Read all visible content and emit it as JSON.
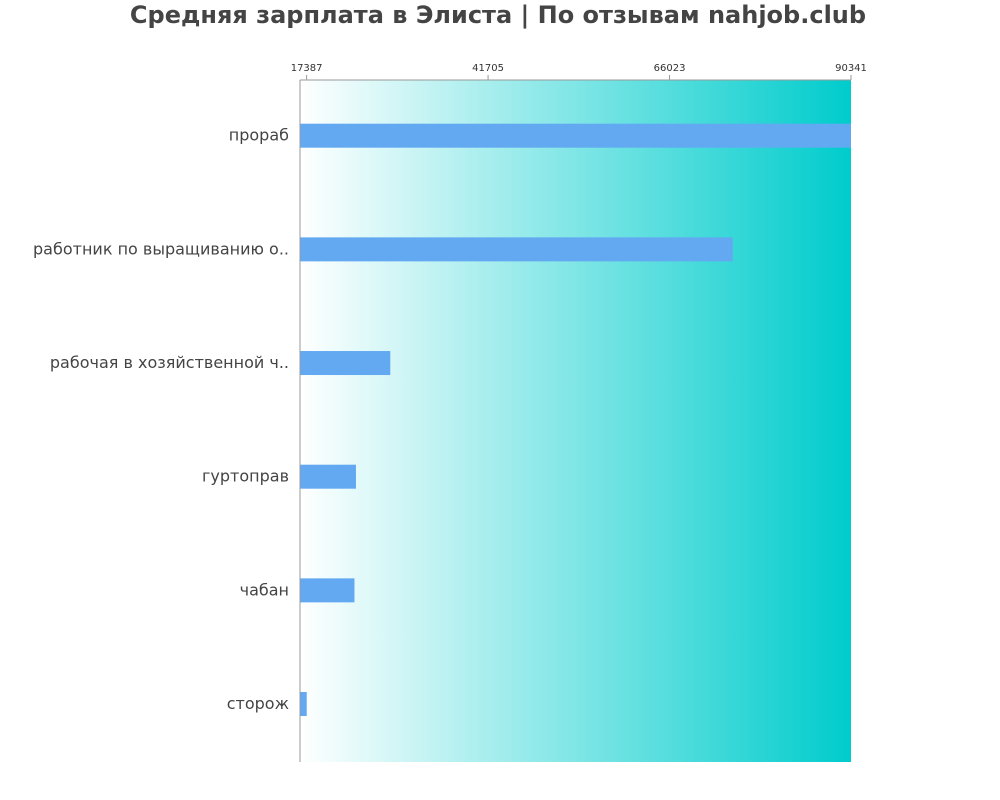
{
  "chart_data": {
    "type": "bar",
    "orientation": "horizontal",
    "title": "Средняя зарплата в Элиста | По отзывам nahjob.club",
    "xlabel": "",
    "ylabel": "",
    "xlim": [
      16500,
      90341
    ],
    "ticks": [
      17387,
      41705,
      66023,
      90341
    ],
    "tick_labels": [
      "17387",
      "41705",
      "66023",
      "90341"
    ],
    "categories": [
      "прораб",
      "работник по выращиванию о..",
      "рабочая в хозяйственной ч..",
      "гуртоправ",
      "чабан",
      "сторож"
    ],
    "values": [
      90341,
      74500,
      28600,
      24000,
      23800,
      17400
    ],
    "bar_color": "#63a9f2",
    "background_gradient": [
      "#ffffff",
      "#00cccc"
    ],
    "axis_color": "#999999",
    "grid": false,
    "legend": "none"
  }
}
